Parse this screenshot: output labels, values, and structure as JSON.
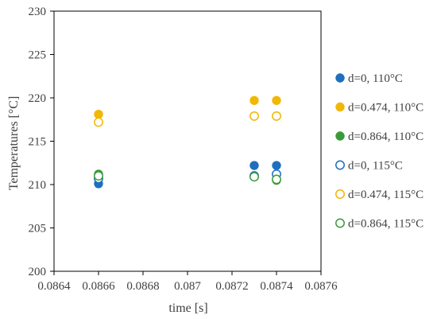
{
  "chart_data": {
    "type": "scatter",
    "xlabel": "time [s]",
    "ylabel": "Temperatures [°C]",
    "xlim": [
      0.0864,
      0.0876
    ],
    "ylim": [
      200,
      230
    ],
    "x_ticks": [
      "0.0864",
      "0.0866",
      "0.0868",
      "0.087",
      "0.0872",
      "0.0874",
      "0.0876"
    ],
    "y_ticks": [
      "200",
      "205",
      "210",
      "215",
      "220",
      "225",
      "230"
    ],
    "grid": false,
    "legend_position": "right",
    "series": [
      {
        "name": "d=0, 110°C",
        "marker": "filled",
        "color": "#1f6fbf",
        "points": [
          [
            0.0866,
            210.1
          ],
          [
            0.0873,
            212.2
          ],
          [
            0.0874,
            212.2
          ]
        ]
      },
      {
        "name": "d=0.474, 110°C",
        "marker": "filled",
        "color": "#f2b705",
        "points": [
          [
            0.0866,
            218.1
          ],
          [
            0.0873,
            219.7
          ],
          [
            0.0874,
            219.7
          ]
        ]
      },
      {
        "name": "d=0.864, 110°C",
        "marker": "filled",
        "color": "#3a9a3a",
        "points": [
          [
            0.0866,
            211.2
          ],
          [
            0.0873,
            210.9
          ],
          [
            0.0874,
            210.5
          ]
        ]
      },
      {
        "name": "d=0, 115°C",
        "marker": "hollow",
        "color": "#1f6fbf",
        "points": [
          [
            0.0866,
            210.7
          ],
          [
            0.0873,
            211.0
          ],
          [
            0.0874,
            211.2
          ]
        ]
      },
      {
        "name": "d=0.474, 115°C",
        "marker": "hollow",
        "color": "#f2b705",
        "points": [
          [
            0.0866,
            217.2
          ],
          [
            0.0873,
            217.9
          ],
          [
            0.0874,
            217.9
          ]
        ]
      },
      {
        "name": "d=0.864, 115°C",
        "marker": "hollow",
        "color": "#3a9a3a",
        "points": [
          [
            0.0866,
            211.0
          ],
          [
            0.0873,
            210.9
          ],
          [
            0.0874,
            210.6
          ]
        ]
      }
    ]
  }
}
